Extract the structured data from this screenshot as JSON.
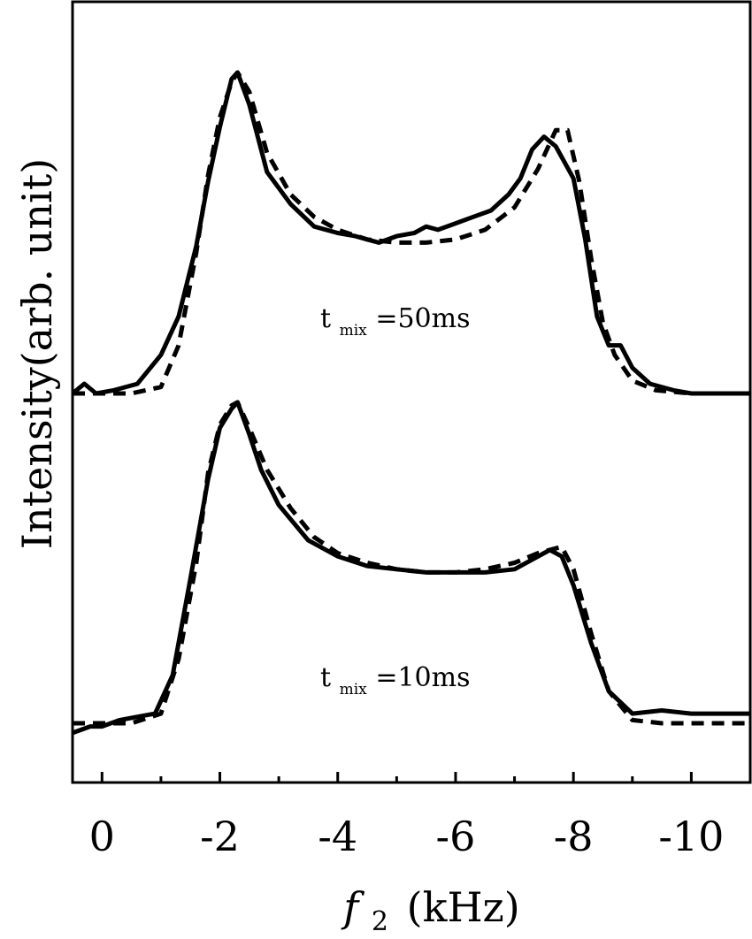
{
  "chart_data": {
    "type": "line",
    "xlabel": "(kHz)",
    "xlabel_var": "f",
    "xlabel_sub": "2",
    "ylabel": "Intensity(arb. unit)",
    "xlim": [
      0.5,
      -11.0
    ],
    "x_ticks": [
      0,
      -2,
      -4,
      -6,
      -8,
      -10
    ],
    "x_tick_labels": [
      "0",
      "-2",
      "-4",
      "-6",
      "-8",
      "-10"
    ],
    "annotations": [
      {
        "main": "t",
        "sub": "mix",
        "rest": "=50ms"
      },
      {
        "main": "t",
        "sub": "mix",
        "rest": "=10ms"
      }
    ],
    "traces": [
      {
        "id": "top-solid",
        "style": "solid",
        "offset": 1.0,
        "x": [
          0.5,
          0.3,
          0.1,
          -0.2,
          -0.6,
          -1.0,
          -1.3,
          -1.6,
          -1.8,
          -2.0,
          -2.2,
          -2.3,
          -2.5,
          -2.8,
          -3.2,
          -3.6,
          -4.0,
          -4.3,
          -4.5,
          -4.7,
          -5.0,
          -5.3,
          -5.5,
          -5.7,
          -6.0,
          -6.3,
          -6.6,
          -6.9,
          -7.1,
          -7.3,
          -7.5,
          -7.7,
          -8.0,
          -8.2,
          -8.4,
          -8.6,
          -8.8,
          -9.0,
          -9.3,
          -9.7,
          -10.0,
          -10.5,
          -11.0
        ],
        "y": [
          0.0,
          0.03,
          0.0,
          0.01,
          0.03,
          0.12,
          0.24,
          0.46,
          0.66,
          0.83,
          0.98,
          1.0,
          0.9,
          0.69,
          0.59,
          0.52,
          0.5,
          0.49,
          0.48,
          0.47,
          0.49,
          0.5,
          0.52,
          0.51,
          0.53,
          0.55,
          0.57,
          0.62,
          0.67,
          0.76,
          0.8,
          0.77,
          0.67,
          0.48,
          0.24,
          0.15,
          0.15,
          0.08,
          0.03,
          0.01,
          0.0,
          0.0,
          0.0
        ]
      },
      {
        "id": "top-dashed",
        "style": "dashed",
        "offset": 1.0,
        "x": [
          0.5,
          0.0,
          -0.5,
          -1.0,
          -1.3,
          -1.6,
          -1.8,
          -2.0,
          -2.2,
          -2.3,
          -2.5,
          -2.8,
          -3.2,
          -3.6,
          -4.0,
          -4.5,
          -5.0,
          -5.5,
          -6.0,
          -6.5,
          -7.0,
          -7.4,
          -7.7,
          -7.9,
          -8.1,
          -8.3,
          -8.5,
          -8.7,
          -9.0,
          -9.4,
          -10.0,
          -11.0
        ],
        "y": [
          0.0,
          0.0,
          0.0,
          0.02,
          0.15,
          0.44,
          0.68,
          0.86,
          0.97,
          1.0,
          0.94,
          0.75,
          0.62,
          0.55,
          0.51,
          0.48,
          0.47,
          0.47,
          0.48,
          0.51,
          0.58,
          0.7,
          0.82,
          0.82,
          0.66,
          0.42,
          0.22,
          0.12,
          0.04,
          0.01,
          0.0,
          0.0
        ]
      },
      {
        "id": "bottom-solid",
        "style": "solid",
        "offset": 0.0,
        "x": [
          0.5,
          0.2,
          0.0,
          -0.3,
          -0.6,
          -0.9,
          -1.2,
          -1.5,
          -1.8,
          -2.0,
          -2.2,
          -2.3,
          -2.5,
          -2.7,
          -3.0,
          -3.5,
          -4.0,
          -4.5,
          -5.0,
          -5.5,
          -6.0,
          -6.5,
          -7.0,
          -7.3,
          -7.6,
          -7.8,
          -8.0,
          -8.3,
          -8.6,
          -9.0,
          -9.5,
          -10.0,
          -10.5,
          -11.0
        ],
        "y": [
          -0.03,
          -0.01,
          -0.01,
          0.01,
          0.02,
          0.03,
          0.15,
          0.45,
          0.76,
          0.92,
          0.98,
          1.0,
          0.9,
          0.79,
          0.68,
          0.57,
          0.52,
          0.49,
          0.48,
          0.47,
          0.47,
          0.47,
          0.48,
          0.51,
          0.54,
          0.52,
          0.43,
          0.25,
          0.1,
          0.03,
          0.04,
          0.03,
          0.03,
          0.03
        ]
      },
      {
        "id": "bottom-dashed",
        "style": "dashed",
        "offset": 0.0,
        "x": [
          0.5,
          0.0,
          -0.5,
          -1.0,
          -1.3,
          -1.6,
          -1.8,
          -2.0,
          -2.2,
          -2.3,
          -2.5,
          -2.8,
          -3.2,
          -3.6,
          -4.0,
          -4.5,
          -5.0,
          -5.5,
          -6.0,
          -6.5,
          -7.0,
          -7.4,
          -7.8,
          -8.0,
          -8.3,
          -8.6,
          -9.0,
          -9.5,
          -10.0,
          -11.0
        ],
        "y": [
          0.0,
          0.0,
          0.0,
          0.03,
          0.2,
          0.5,
          0.78,
          0.93,
          0.99,
          1.0,
          0.92,
          0.79,
          0.67,
          0.58,
          0.53,
          0.5,
          0.48,
          0.47,
          0.47,
          0.48,
          0.5,
          0.53,
          0.55,
          0.48,
          0.28,
          0.1,
          0.01,
          0.0,
          0.0,
          0.0
        ]
      }
    ]
  }
}
